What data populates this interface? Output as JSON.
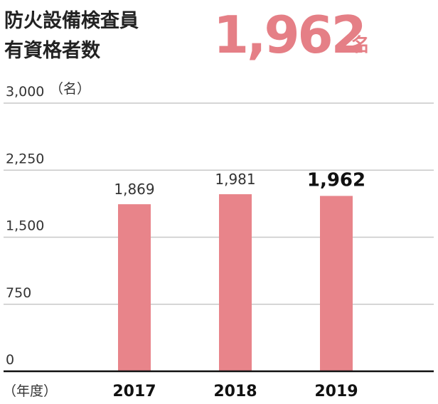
{
  "chart_data": {
    "type": "bar",
    "title": [
      "防火設備検査員",
      "有資格者数"
    ],
    "highlight": {
      "value": "1,962",
      "unit": "名"
    },
    "y_unit": "（名）",
    "x_unit": "（年度）",
    "categories": [
      "2017",
      "2018",
      "2019"
    ],
    "values": [
      1869,
      1981,
      1962
    ],
    "value_labels": [
      "1,869",
      "1,981",
      "1,962"
    ],
    "color": "#e8848a",
    "ylim": [
      0,
      3000
    ],
    "yticks": [
      0,
      750,
      {
        "value": 1500,
        "label": "1,500"
      },
      {
        "value": 2250,
        "label": "2,250"
      },
      {
        "value": 3000,
        "label": "3,000"
      }
    ],
    "grid": true
  }
}
